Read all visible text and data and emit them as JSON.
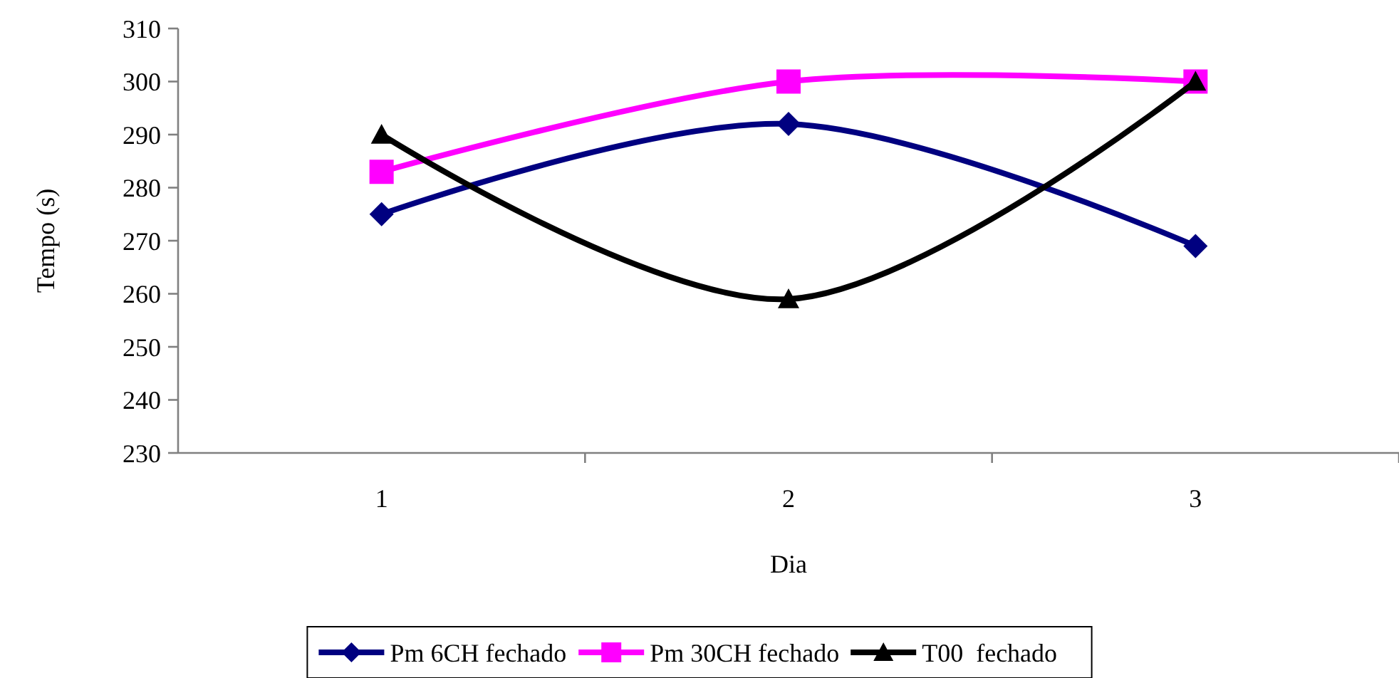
{
  "chart_data": {
    "type": "line",
    "xlabel": "Dia",
    "ylabel": "Tempo (s)",
    "categories": [
      "1",
      "2",
      "3"
    ],
    "ylim": [
      230,
      310
    ],
    "yticks": [
      230,
      240,
      250,
      260,
      270,
      280,
      290,
      300,
      310
    ],
    "grid": false,
    "legend": "bottom",
    "line_style": "solid",
    "series": [
      {
        "name": "Pm 6CH fechado",
        "color": "#000080",
        "marker": "diamond",
        "values": [
          275,
          292,
          269
        ]
      },
      {
        "name": "Pm 30CH fechado",
        "color": "#ff00ff",
        "marker": "square",
        "values": [
          283,
          300,
          300
        ]
      },
      {
        "name": "T00  fechado",
        "color": "#000000",
        "marker": "triangle",
        "values": [
          290,
          259,
          300
        ]
      }
    ]
  }
}
